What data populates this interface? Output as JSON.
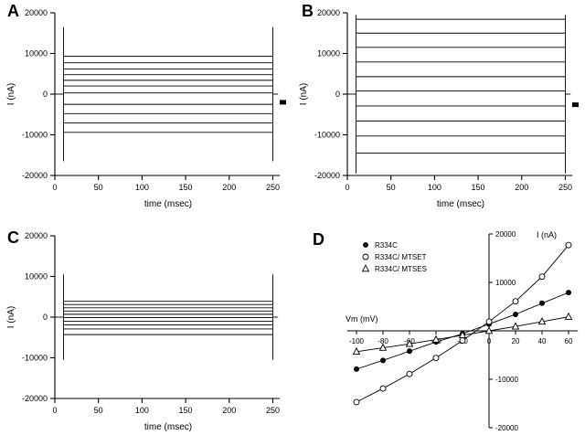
{
  "figure": {
    "background_color": "#ffffff",
    "line_color": "#000000",
    "description": "Four-panel electrophysiology figure: whole-cell current traces (A, B, C) and current-voltage relationships (D)"
  },
  "chart_data": [
    {
      "panel_label": "A",
      "type": "line",
      "subtype": "current-traces",
      "xlabel": "time (msec)",
      "ylabel": "I (nA)",
      "xlim": [
        0,
        260
      ],
      "ylim": [
        -20000,
        20000
      ],
      "xticks": [
        0,
        50,
        100,
        150,
        200,
        250
      ],
      "yticks": [
        20000,
        10000,
        0,
        -10000,
        -20000
      ],
      "pulse_start_msec": 10,
      "pulse_end_msec": 250,
      "capacitive_spike_nA": 16500,
      "trace_levels_nA": [
        9300,
        7700,
        6200,
        4800,
        3400,
        2000,
        300,
        -2500,
        -4800,
        -7100,
        -9400
      ],
      "edge_marker_nA": -2000
    },
    {
      "panel_label": "B",
      "type": "line",
      "subtype": "current-traces",
      "xlabel": "time (msec)",
      "ylabel": "I (nA)",
      "xlim": [
        0,
        260
      ],
      "ylim": [
        -20000,
        20000
      ],
      "xticks": [
        0,
        50,
        100,
        150,
        200,
        250
      ],
      "yticks": [
        20000,
        10000,
        0,
        -10000,
        -20000
      ],
      "pulse_start_msec": 10,
      "pulse_end_msec": 250,
      "capacitive_spike_nA": 19500,
      "trace_levels_nA": [
        18400,
        15000,
        11500,
        7900,
        4300,
        800,
        -2900,
        -6600,
        -10300,
        -14500
      ],
      "edge_marker_nA": -2600
    },
    {
      "panel_label": "C",
      "type": "line",
      "subtype": "current-traces",
      "xlabel": "time (msec)",
      "ylabel": "I (nA)",
      "xlim": [
        0,
        260
      ],
      "ylim": [
        -20000,
        20000
      ],
      "xticks": [
        0,
        50,
        100,
        150,
        200,
        250
      ],
      "yticks": [
        20000,
        10000,
        0,
        -10000,
        -20000
      ],
      "pulse_start_msec": 10,
      "pulse_end_msec": 250,
      "capacitive_spike_nA": 10500,
      "trace_levels_nA": [
        3900,
        3100,
        2300,
        1500,
        700,
        -100,
        -1000,
        -1900,
        -2900,
        -4300
      ],
      "edge_marker_nA": null
    },
    {
      "panel_label": "D",
      "type": "scatter",
      "subtype": "current-voltage-relation",
      "xlabel": "Vm (mV)",
      "ylabel": "I (nA)",
      "xlim": [
        -110,
        70
      ],
      "ylim": [
        -20000,
        20000
      ],
      "xticks": [
        -100,
        -80,
        -60,
        -40,
        -20,
        0,
        20,
        40,
        60
      ],
      "yticks": [
        20000,
        10000,
        -10000,
        -20000
      ],
      "x_mV": [
        -100,
        -80,
        -60,
        -40,
        -20,
        0,
        20,
        40,
        60
      ],
      "series": [
        {
          "name": "R334C",
          "marker": "filled-circle",
          "values": [
            -7900,
            -6100,
            -4200,
            -2300,
            -600,
            1400,
            3400,
            5700,
            7900
          ]
        },
        {
          "name": "R334C/ MTSET",
          "marker": "open-circle",
          "values": [
            -14700,
            -11900,
            -8900,
            -5600,
            -2000,
            1900,
            6100,
            11200,
            17700
          ]
        },
        {
          "name": "R334C/ MTSES",
          "marker": "open-triangle",
          "values": [
            -4300,
            -3500,
            -2700,
            -1800,
            -900,
            0,
            900,
            1900,
            2900
          ]
        }
      ],
      "legend_position": "top-left"
    }
  ]
}
